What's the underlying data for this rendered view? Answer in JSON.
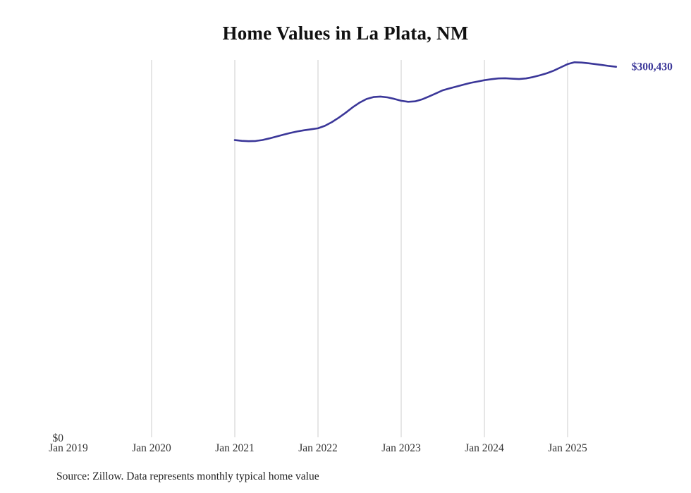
{
  "source": {
    "text": "Source: Zillow. Data represents monthly typical home value"
  },
  "colors": {
    "line": "#3b3799",
    "grid": "#cccccc",
    "tick_label": "#333333",
    "title": "#111111",
    "end_label": "#3b3799"
  },
  "chart_data": {
    "type": "line",
    "title": "Home Values in La Plata, NM",
    "series_name": "Monthly typical home value",
    "x_axis_start": "2019-01",
    "x_start": "2021-01",
    "x_ticks": [
      "Jan 2019",
      "Jan 2020",
      "Jan 2021",
      "Jan 2022",
      "Jan 2023",
      "Jan 2024",
      "Jan 2025"
    ],
    "y_axis_label_zero": "$0",
    "ylim": [
      0,
      306000
    ],
    "grid": "vertical-only",
    "legend": "none",
    "end_label": "$300,430",
    "end_value": 300430,
    "values": [
      241000,
      240400,
      240100,
      240300,
      241100,
      242400,
      243900,
      245400,
      246800,
      248000,
      249000,
      249800,
      250600,
      252600,
      255600,
      259200,
      263200,
      267600,
      271400,
      274300,
      275900,
      276300,
      275700,
      274400,
      272900,
      272100,
      272400,
      274000,
      276400,
      278900,
      281400,
      283000,
      284500,
      286000,
      287400,
      288500,
      289600,
      290400,
      291000,
      291200,
      290800,
      290500,
      291000,
      292100,
      293600,
      295200,
      297300,
      300000,
      302600,
      304100,
      303900,
      303300,
      302600,
      301900,
      301100,
      300430
    ]
  }
}
